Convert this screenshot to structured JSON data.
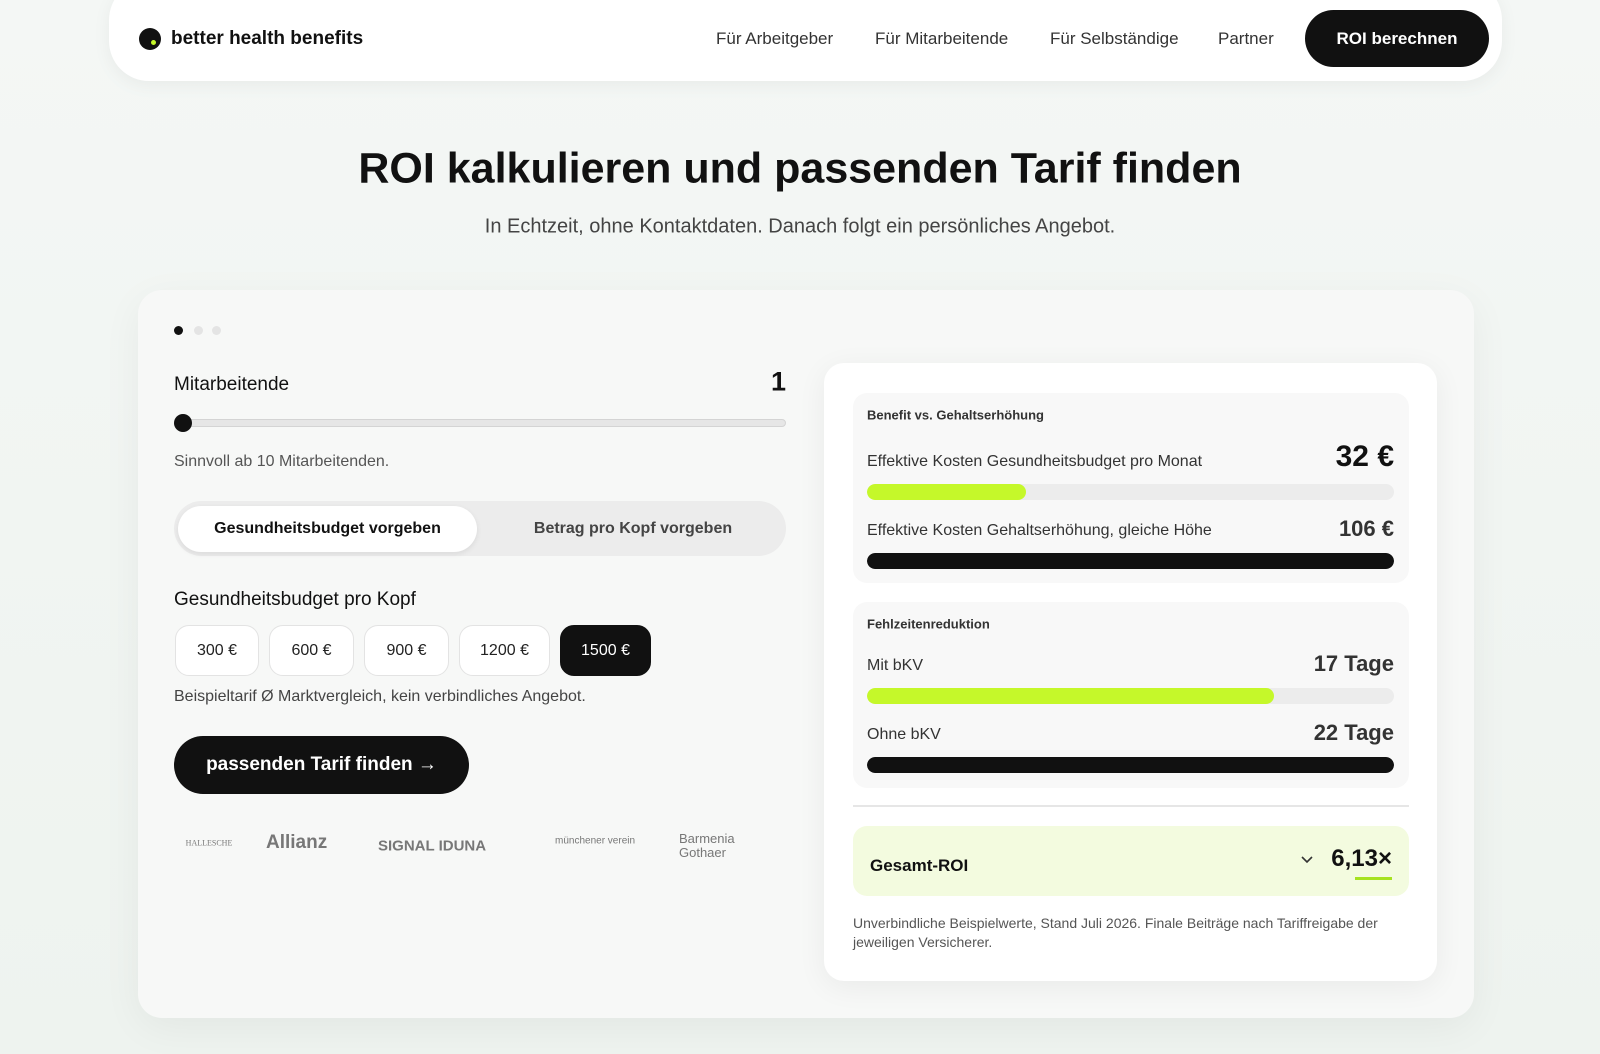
{
  "nav": {
    "brand": "better health benefits",
    "links": [
      "Für Arbeitgeber",
      "Für Mitarbeitende",
      "Für Selbständige",
      "Partner"
    ],
    "cta": "ROI berechnen"
  },
  "hero": {
    "title": "ROI kalkulieren und passenden Tarif finden",
    "subtitle": "In Echtzeit, ohne Kontaktdaten. Danach folgt ein persönliches Angebot."
  },
  "calculator": {
    "employees_label": "Mitarbeitende",
    "employees": 1,
    "employees_hint": "Sinnvoll ab 10 Mitarbeitenden.",
    "modes": [
      "Gesundheitsbudget vorgeben",
      "Betrag pro Kopf vorgeben"
    ],
    "budget_label": "Gesundheitsbudget pro Kopf",
    "budget_options": [
      "300 €",
      "600 €",
      "900 €",
      "1200 €",
      "1500 €"
    ],
    "budget_note": "Beispieltarif Ø Marktvergleich, kein verbindliches Angebot.",
    "submit": "passenden Tarif finden →",
    "insurers": [
      "HALLESCHE",
      "Allianz",
      "SIGNAL IDUNA",
      "münchener verein",
      "Barmenia Gothaer"
    ]
  },
  "results": {
    "benefit": {
      "title": "Benefit vs. Gehaltserhöhung",
      "rows": [
        {
          "label": "Effektive Kosten Gesundheitsbudget pro Monat",
          "value": 32,
          "value_label": "32 €",
          "color": "#c5f82a"
        },
        {
          "label": "Effektive Kosten Gehaltserhöhung, gleiche Höhe",
          "value": 106,
          "value_label": "106 €",
          "color": "#111111"
        }
      ]
    },
    "absence": {
      "title": "Fehlzeitenreduktion",
      "rows": [
        {
          "label": "Mit bKV",
          "value": 17,
          "value_label": "17 Tage",
          "color": "#c5f82a"
        },
        {
          "label": "Ohne bKV",
          "value": 22,
          "value_label": "22 Tage",
          "color": "#111111"
        }
      ]
    },
    "roi": {
      "label": "Gesamt-ROI",
      "value": "6,13×"
    },
    "footnote": "Unverbindliche Beispielwerte, Stand Juli 2026. Finale Beiträge nach Tariffreigabe der jeweiligen Versicherer."
  }
}
